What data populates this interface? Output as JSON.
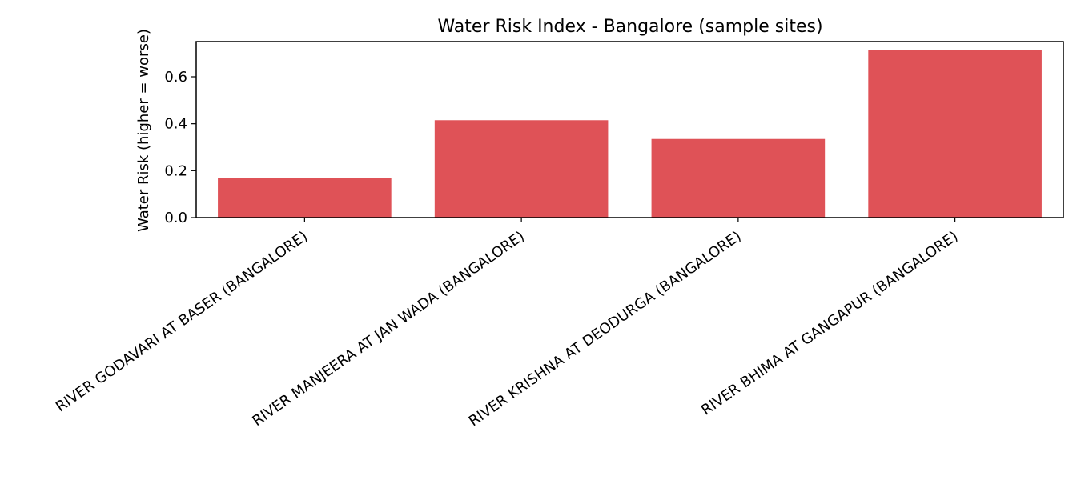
{
  "chart_data": {
    "type": "bar",
    "title": "Water Risk Index - Bangalore (sample sites)",
    "xlabel": "",
    "ylabel": "Water Risk (higher = worse)",
    "categories": [
      "RIVER GODAVARI AT BASER (BANGALORE)",
      "RIVER MANJEERA AT JAN WADA (BANGALORE)",
      "RIVER KRISHNA AT DEODURGA (BANGALORE)",
      "RIVER BHIMA AT GANGAPUR (BANGALORE)"
    ],
    "values": [
      0.17,
      0.415,
      0.335,
      0.715
    ],
    "ylim": [
      0,
      0.75
    ],
    "yticks": [
      0.0,
      0.2,
      0.4,
      0.6
    ],
    "ytick_labels": [
      "0.0",
      "0.2",
      "0.4",
      "0.6"
    ],
    "bar_color": "#df5257",
    "grid": false,
    "legend": "none"
  }
}
